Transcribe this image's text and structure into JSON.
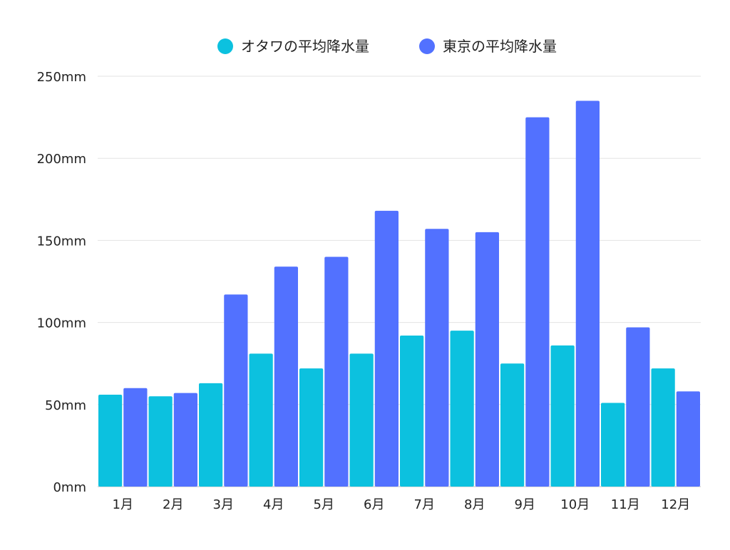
{
  "chart_data": {
    "type": "bar",
    "categories": [
      "1月",
      "2月",
      "3月",
      "4月",
      "5月",
      "6月",
      "7月",
      "8月",
      "9月",
      "10月",
      "11月",
      "12月"
    ],
    "series": [
      {
        "name": "オタワの平均降水量",
        "color": "#0cc1df",
        "values": [
          56,
          55,
          63,
          81,
          72,
          81,
          92,
          95,
          75,
          86,
          51,
          72
        ]
      },
      {
        "name": "東京の平均降水量",
        "color": "#5271ff",
        "values": [
          60,
          57,
          117,
          134,
          140,
          168,
          157,
          155,
          225,
          235,
          97,
          58
        ]
      }
    ],
    "y_ticks": [
      "0mm",
      "50mm",
      "100mm",
      "150mm",
      "200mm",
      "250mm"
    ],
    "ylim": [
      0,
      250
    ],
    "grid": true,
    "legend_position": "top-center",
    "title": "",
    "xlabel": "",
    "ylabel": ""
  }
}
